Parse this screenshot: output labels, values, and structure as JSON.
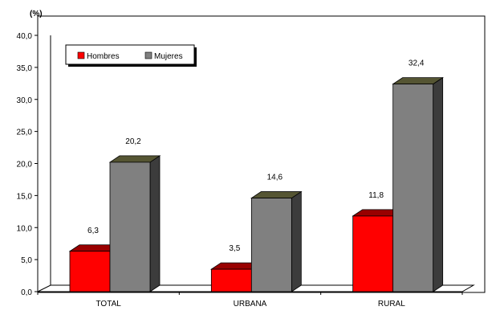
{
  "chart_data": {
    "type": "bar",
    "ylabel": "(%)",
    "categories": [
      "TOTAL",
      "URBANA",
      "RURAL"
    ],
    "ylim": [
      0,
      40
    ],
    "yticks": [
      "0,0",
      "5,0",
      "10,0",
      "15,0",
      "20,0",
      "25,0",
      "30,0",
      "35,0",
      "40,0"
    ],
    "series": [
      {
        "name": "Hombres",
        "values": [
          6.3,
          3.5,
          11.8
        ],
        "labels": [
          "6,3",
          "3,5",
          "11,8"
        ],
        "color": "#ff0000"
      },
      {
        "name": "Mujeres",
        "values": [
          20.2,
          14.6,
          32.4
        ],
        "labels": [
          "20,2",
          "14,6",
          "32,4"
        ],
        "color": "#808080"
      }
    ],
    "legend_position": "top-left",
    "grid": false
  }
}
